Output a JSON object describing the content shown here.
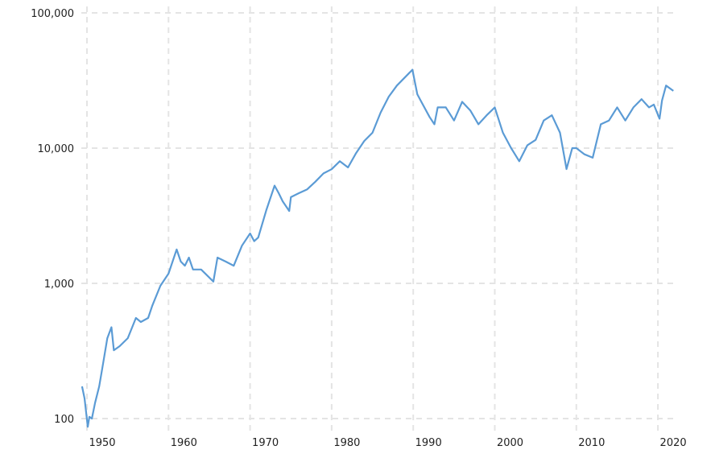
{
  "chart_data": {
    "type": "line",
    "title": "",
    "xlabel": "",
    "ylabel": "",
    "y_scale": "log",
    "ylim": [
      100,
      100000
    ],
    "xlim": [
      1949.4,
      2021.9
    ],
    "grid": true,
    "line_color": "#5b9bd5",
    "grid_color": "#e4e4e4",
    "y_ticks": [
      {
        "value": 100,
        "label": "100"
      },
      {
        "value": 1000,
        "label": "1,000"
      },
      {
        "value": 10000,
        "label": "10,000"
      },
      {
        "value": 100000,
        "label": "100,000"
      }
    ],
    "x_ticks": [
      {
        "value": 1950,
        "label": "1950"
      },
      {
        "value": 1960,
        "label": "1960"
      },
      {
        "value": 1970,
        "label": "1970"
      },
      {
        "value": 1980,
        "label": "1980"
      },
      {
        "value": 1990,
        "label": "1990"
      },
      {
        "value": 2000,
        "label": "2000"
      },
      {
        "value": 2010,
        "label": "2010"
      },
      {
        "value": 2020,
        "label": "2020"
      }
    ],
    "series": [
      {
        "x": [
          1949.4,
          1949.7,
          1950.1,
          1950.3,
          1950.6,
          1951,
          1951.5,
          1952,
          1952.5,
          1953,
          1953.3,
          1954,
          1955,
          1956,
          1956.6,
          1957.5,
          1958,
          1959,
          1960,
          1961,
          1961.5,
          1962,
          1962.5,
          1963,
          1964,
          1965.5,
          1966,
          1967,
          1968,
          1969,
          1970,
          1970.5,
          1971,
          1972,
          1973,
          1973.5,
          1974,
          1974.8,
          1975,
          1976,
          1977,
          1978,
          1979,
          1980,
          1981,
          1982,
          1983,
          1984,
          1985,
          1986,
          1987,
          1988,
          1989.9,
          1990.5,
          1991,
          1992,
          1992.6,
          1993,
          1994,
          1995,
          1996,
          1997,
          1998,
          1999,
          2000,
          2001,
          2002,
          2003,
          2004,
          2005,
          2006,
          2007,
          2008,
          2008.8,
          2009.5,
          2010,
          2011,
          2012,
          2013,
          2014,
          2015,
          2016,
          2017,
          2018,
          2018.9,
          2019.5,
          2020.2,
          2020.5,
          2021,
          2021.9
        ],
        "y": [
          173,
          141,
          87,
          103,
          100,
          131,
          173,
          261,
          393,
          474,
          320,
          343,
          393,
          555,
          518,
          555,
          680,
          960,
          1180,
          1780,
          1450,
          1350,
          1550,
          1265,
          1265,
          1030,
          1550,
          1450,
          1350,
          1900,
          2340,
          2050,
          2180,
          3500,
          5280,
          4650,
          4040,
          3430,
          4340,
          4650,
          4960,
          5640,
          6500,
          6980,
          8000,
          7200,
          9200,
          11300,
          13000,
          18300,
          24000,
          29000,
          38000,
          25000,
          22000,
          17000,
          15000,
          20000,
          20000,
          16000,
          22000,
          19000,
          15000,
          17500,
          20000,
          13000,
          10000,
          8000,
          10500,
          11500,
          16000,
          17500,
          13000,
          7000,
          10000,
          10000,
          9000,
          8500,
          15000,
          16000,
          20000,
          16000,
          20000,
          23000,
          20000,
          21000,
          16500,
          22500,
          29000,
          26500
        ]
      }
    ]
  }
}
